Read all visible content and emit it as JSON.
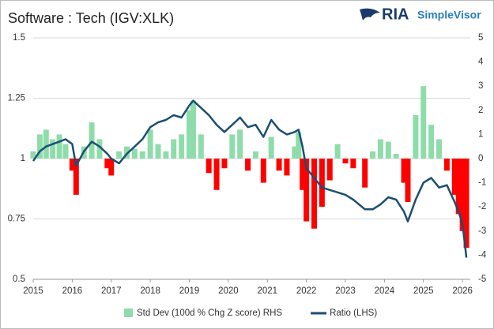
{
  "logo": {
    "brand": "RIA",
    "product": "SimpleVisor"
  },
  "chart_data": {
    "type": "bar-line",
    "title": "Software : Tech (IGV:XLK)",
    "x": [
      2015.0,
      2015.17,
      2015.33,
      2015.5,
      2015.67,
      2015.83,
      2016.0,
      2016.1,
      2016.3,
      2016.5,
      2016.7,
      2016.9,
      2017.0,
      2017.2,
      2017.4,
      2017.6,
      2017.8,
      2018.0,
      2018.2,
      2018.4,
      2018.6,
      2018.8,
      2019.0,
      2019.1,
      2019.3,
      2019.5,
      2019.7,
      2019.9,
      2020.1,
      2020.3,
      2020.5,
      2020.7,
      2020.9,
      2021.1,
      2021.3,
      2021.5,
      2021.7,
      2021.8,
      2021.9,
      2022.0,
      2022.2,
      2022.4,
      2022.6,
      2022.8,
      2023.0,
      2023.2,
      2023.5,
      2023.7,
      2023.9,
      2024.1,
      2024.3,
      2024.5,
      2024.6,
      2024.8,
      2025.0,
      2025.2,
      2025.4,
      2025.6,
      2025.8,
      2025.9,
      2026.0,
      2026.1
    ],
    "series": [
      {
        "name": "Std Dev (100d % Chg Z score) RHS",
        "type": "bar",
        "axis": "y2",
        "color": "#8fdcab",
        "negative_color": "#ff0000",
        "values": [
          0.3,
          1.0,
          1.2,
          0.8,
          1.0,
          0.6,
          -0.5,
          -1.5,
          0.5,
          1.5,
          0.8,
          -0.4,
          -0.7,
          0.3,
          0.5,
          0.4,
          0.3,
          1.2,
          0.6,
          0.3,
          0.8,
          1.0,
          2.0,
          2.4,
          1.0,
          -0.6,
          -1.3,
          -0.4,
          1.0,
          1.2,
          -0.5,
          0.3,
          -1.0,
          0.9,
          -0.5,
          -0.7,
          0.5,
          1.1,
          -1.3,
          -2.6,
          -2.9,
          -2.0,
          -0.9,
          0.6,
          -0.2,
          -0.4,
          -1.2,
          0.3,
          0.8,
          0.7,
          0.2,
          -1.0,
          -1.8,
          1.8,
          3.0,
          1.4,
          0.8,
          -0.5,
          -1.5,
          -2.3,
          -3.0,
          -3.7
        ]
      },
      {
        "name": "Ratio (LHS)",
        "type": "line",
        "axis": "y",
        "color": "#1b4f72",
        "values": [
          0.99,
          1.03,
          1.05,
          1.06,
          1.07,
          1.08,
          1.06,
          0.97,
          1.03,
          1.07,
          1.05,
          1.02,
          1.0,
          0.98,
          1.02,
          1.05,
          1.08,
          1.13,
          1.15,
          1.16,
          1.18,
          1.17,
          1.22,
          1.24,
          1.21,
          1.18,
          1.14,
          1.11,
          1.14,
          1.17,
          1.13,
          1.14,
          1.09,
          1.16,
          1.12,
          1.1,
          1.11,
          1.12,
          1.05,
          0.96,
          0.92,
          0.88,
          0.87,
          0.86,
          0.85,
          0.83,
          0.79,
          0.79,
          0.81,
          0.84,
          0.83,
          0.78,
          0.74,
          0.83,
          0.9,
          0.92,
          0.88,
          0.89,
          0.82,
          0.78,
          0.73,
          0.59
        ]
      }
    ],
    "xlim": [
      2015,
      2026.2
    ],
    "xticks": [
      2015,
      2016,
      2017,
      2018,
      2019,
      2020,
      2021,
      2022,
      2023,
      2024,
      2025,
      2026
    ],
    "ylim": [
      0.5,
      1.5
    ],
    "yticks": [
      0.5,
      0.75,
      1,
      1.25,
      1.5
    ],
    "y2lim": [
      -5,
      5
    ],
    "y2ticks": [
      -5,
      -4,
      -3,
      -2,
      -1,
      0,
      1,
      2,
      3,
      4,
      5
    ],
    "grid": true,
    "legend": "bottom"
  }
}
